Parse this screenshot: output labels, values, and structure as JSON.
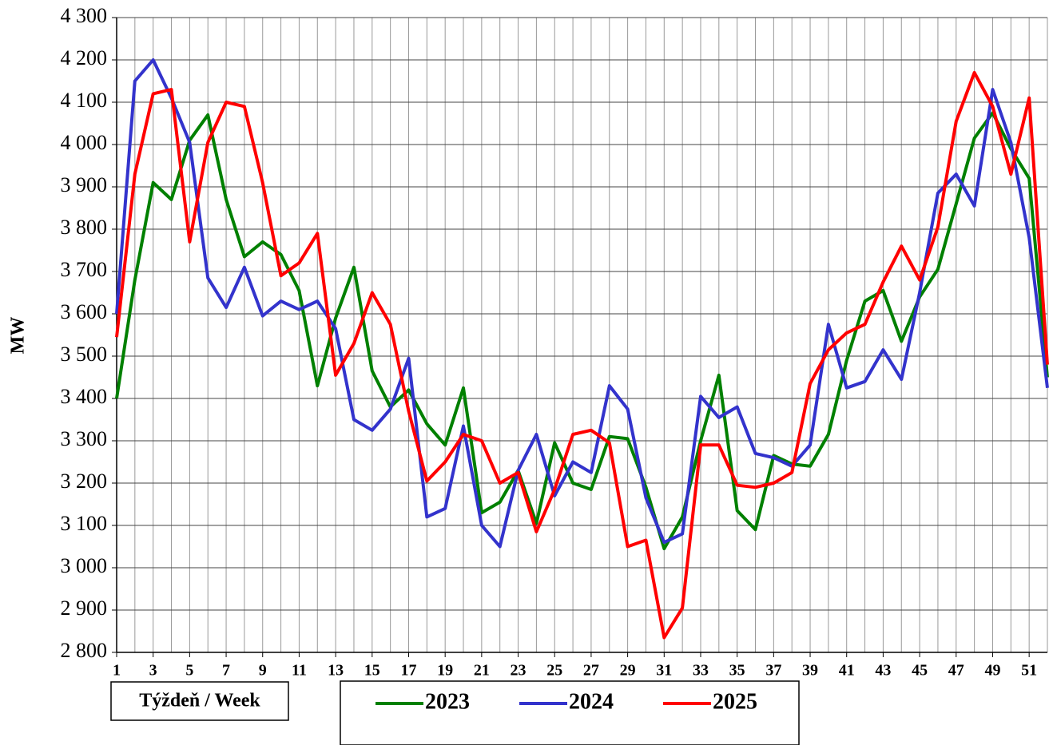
{
  "chart_data": {
    "type": "line",
    "ylabel": "MW",
    "xlabel": "Týždeň / Week",
    "x": [
      1,
      2,
      3,
      4,
      5,
      6,
      7,
      8,
      9,
      10,
      11,
      12,
      13,
      14,
      15,
      16,
      17,
      18,
      19,
      20,
      21,
      22,
      23,
      24,
      25,
      26,
      27,
      28,
      29,
      30,
      31,
      32,
      33,
      34,
      35,
      36,
      37,
      38,
      39,
      40,
      41,
      42,
      43,
      44,
      45,
      46,
      47,
      48,
      49,
      50,
      51,
      52
    ],
    "xlim": [
      1,
      52
    ],
    "xticks": [
      1,
      3,
      5,
      7,
      9,
      11,
      13,
      15,
      17,
      19,
      21,
      23,
      25,
      27,
      29,
      31,
      33,
      35,
      37,
      39,
      41,
      43,
      45,
      47,
      49,
      51
    ],
    "ylim": [
      2800,
      4300
    ],
    "yticks": [
      {
        "value": 2800,
        "label": "2 800"
      },
      {
        "value": 2900,
        "label": "2 900"
      },
      {
        "value": 3000,
        "label": "3 000"
      },
      {
        "value": 3100,
        "label": "3 100"
      },
      {
        "value": 3200,
        "label": "3 200"
      },
      {
        "value": 3300,
        "label": "3 300"
      },
      {
        "value": 3400,
        "label": "3 400"
      },
      {
        "value": 3500,
        "label": "3 500"
      },
      {
        "value": 3600,
        "label": "3 600"
      },
      {
        "value": 3700,
        "label": "3 700"
      },
      {
        "value": 3800,
        "label": "3 800"
      },
      {
        "value": 3900,
        "label": "3 900"
      },
      {
        "value": 4000,
        "label": "4 000"
      },
      {
        "value": 4100,
        "label": "4 100"
      },
      {
        "value": 4200,
        "label": "4 200"
      },
      {
        "value": 4300,
        "label": "4 300"
      }
    ],
    "grid": true,
    "series": [
      {
        "name": "2023",
        "color": "#008000",
        "values": [
          3400,
          3680,
          3910,
          3870,
          4010,
          4070,
          3870,
          3735,
          3770,
          3740,
          3655,
          3430,
          3590,
          3710,
          3465,
          3380,
          3420,
          3340,
          3290,
          3425,
          3130,
          3155,
          3230,
          3105,
          3295,
          3200,
          3185,
          3310,
          3305,
          3190,
          3045,
          3120,
          3300,
          3455,
          3135,
          3090,
          3265,
          3245,
          3240,
          3315,
          3490,
          3630,
          3655,
          3535,
          3640,
          3705,
          3860,
          4015,
          4075,
          3990,
          3920,
          3450
        ]
      },
      {
        "name": "2024",
        "color": "#3333cc",
        "values": [
          3600,
          4150,
          4200,
          4110,
          4005,
          3685,
          3615,
          3710,
          3595,
          3630,
          3610,
          3630,
          3565,
          3350,
          3325,
          3375,
          3495,
          3120,
          3140,
          3335,
          3100,
          3050,
          3230,
          3315,
          3170,
          3250,
          3225,
          3430,
          3375,
          3165,
          3060,
          3080,
          3405,
          3355,
          3380,
          3270,
          3260,
          3240,
          3290,
          3575,
          3425,
          3440,
          3515,
          3445,
          3650,
          3885,
          3930,
          3855,
          4130,
          4005,
          3780,
          3425
        ]
      },
      {
        "name": "2025",
        "color": "#ff0000",
        "values": [
          3545,
          3930,
          4120,
          4130,
          3770,
          4005,
          4100,
          4090,
          3910,
          3690,
          3720,
          3790,
          3455,
          3530,
          3650,
          3575,
          3370,
          3205,
          3250,
          3315,
          3300,
          3200,
          3225,
          3085,
          3185,
          3315,
          3325,
          3295,
          3050,
          3065,
          2835,
          2905,
          3290,
          3290,
          3195,
          3190,
          3200,
          3225,
          3435,
          3515,
          3555,
          3575,
          3675,
          3760,
          3680,
          3805,
          4055,
          4170,
          4090,
          3930,
          4110,
          3480
        ]
      }
    ]
  }
}
